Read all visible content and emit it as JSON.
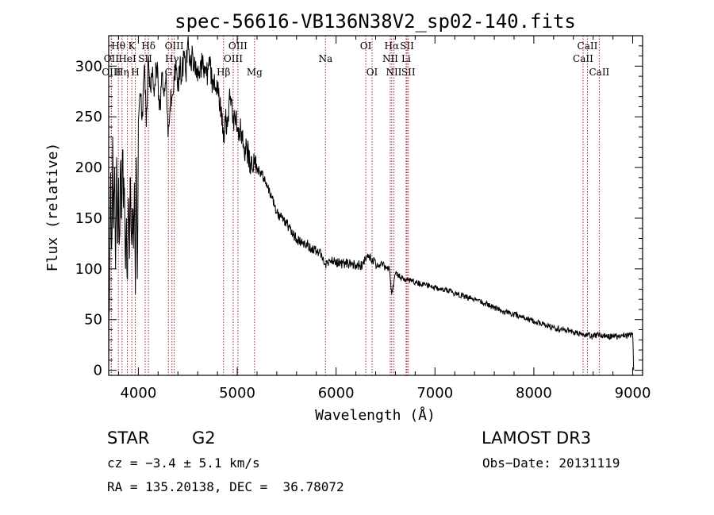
{
  "chart_data": {
    "type": "line",
    "title": "spec-56616-VB136N38V2_sp02-140.fits",
    "xlabel": "Wavelength (Å)",
    "ylabel": "Flux (relative)",
    "xlim": [
      3700,
      9100
    ],
    "ylim": [
      -5,
      330
    ],
    "xticks": [
      4000,
      5000,
      6000,
      7000,
      8000,
      9000
    ],
    "yticks": [
      0,
      50,
      100,
      150,
      200,
      250,
      300
    ],
    "xtick_labels": [
      "4000",
      "5000",
      "6000",
      "7000",
      "8000",
      "9000"
    ],
    "ytick_labels": [
      "0",
      "50",
      "100",
      "150",
      "200",
      "250",
      "300"
    ],
    "grid": false,
    "series": [
      {
        "name": "flux",
        "color": "#000000",
        "x": [
          3700,
          3710,
          3720,
          3730,
          3740,
          3750,
          3760,
          3770,
          3780,
          3790,
          3800,
          3810,
          3820,
          3830,
          3840,
          3850,
          3860,
          3870,
          3880,
          3890,
          3900,
          3910,
          3920,
          3930,
          3940,
          3950,
          3960,
          3970,
          3980,
          3990,
          4000,
          4020,
          4040,
          4060,
          4080,
          4101,
          4120,
          4140,
          4160,
          4180,
          4200,
          4220,
          4240,
          4260,
          4280,
          4300,
          4320,
          4340,
          4360,
          4380,
          4400,
          4420,
          4440,
          4460,
          4480,
          4500,
          4520,
          4540,
          4560,
          4580,
          4600,
          4630,
          4660,
          4690,
          4720,
          4750,
          4780,
          4810,
          4840,
          4861,
          4880,
          4900,
          4920,
          4950,
          4980,
          5010,
          5040,
          5070,
          5100,
          5130,
          5160,
          5180,
          5200,
          5230,
          5270,
          5310,
          5350,
          5400,
          5450,
          5500,
          5550,
          5600,
          5650,
          5700,
          5750,
          5800,
          5850,
          5893,
          5950,
          6000,
          6050,
          6100,
          6150,
          6200,
          6250,
          6300,
          6320,
          6350,
          6400,
          6450,
          6500,
          6540,
          6563,
          6600,
          6650,
          6700,
          6750,
          6800,
          6850,
          6900,
          6950,
          7000,
          7100,
          7200,
          7300,
          7400,
          7500,
          7600,
          7700,
          7800,
          7900,
          8000,
          8100,
          8200,
          8300,
          8400,
          8450,
          8498,
          8542,
          8580,
          8662,
          8700,
          8750,
          8800,
          8850,
          8900,
          8950,
          8990,
          9000,
          9010
        ],
        "y": [
          0,
          95,
          195,
          120,
          230,
          140,
          200,
          100,
          210,
          125,
          190,
          130,
          205,
          150,
          215,
          160,
          180,
          100,
          150,
          90,
          170,
          110,
          190,
          130,
          160,
          120,
          185,
          75,
          210,
          90,
          245,
          270,
          255,
          300,
          240,
          310,
          280,
          290,
          270,
          300,
          285,
          260,
          290,
          270,
          295,
          230,
          260,
          270,
          290,
          305,
          275,
          300,
          285,
          310,
          290,
          325,
          300,
          310,
          295,
          305,
          285,
          305,
          295,
          290,
          300,
          285,
          275,
          270,
          260,
          225,
          245,
          240,
          270,
          255,
          245,
          240,
          235,
          220,
          215,
          205,
          195,
          210,
          200,
          195,
          190,
          180,
          170,
          155,
          150,
          145,
          135,
          130,
          125,
          125,
          120,
          118,
          115,
          105,
          108,
          107,
          105,
          106,
          105,
          104,
          103,
          108,
          115,
          110,
          105,
          104,
          103,
          100,
          75,
          95,
          92,
          90,
          88,
          87,
          85,
          84,
          83,
          82,
          80,
          76,
          73,
          70,
          66,
          62,
          58,
          55,
          52,
          48,
          45,
          42,
          40,
          38,
          36,
          35,
          36,
          33,
          35,
          34,
          33,
          34,
          33,
          35,
          34,
          35,
          36,
          0
        ]
      }
    ],
    "line_ids": [
      {
        "label": "Hθ",
        "wave": 3798,
        "row": 1
      },
      {
        "label": "OII",
        "wave": 3727,
        "row": 2
      },
      {
        "label": "OIII",
        "wave": 3727,
        "row": 3
      },
      {
        "label": "Hη",
        "wave": 3835,
        "row": 3
      },
      {
        "label": "K",
        "wave": 3934,
        "row": 1
      },
      {
        "label": "HeI",
        "wave": 3889,
        "row": 2
      },
      {
        "label": "H",
        "wave": 3969,
        "row": 3
      },
      {
        "label": "Hδ",
        "wave": 4102,
        "row": 1
      },
      {
        "label": "SII",
        "wave": 4069,
        "row": 2
      },
      {
        "label": "OIII",
        "wave": 4363,
        "row": 1
      },
      {
        "label": "Hγ",
        "wave": 4340,
        "row": 2
      },
      {
        "label": "G",
        "wave": 4304,
        "row": 3
      },
      {
        "label": "Hβ",
        "wave": 4861,
        "row": 3
      },
      {
        "label": "OIII",
        "wave": 5007,
        "row": 1
      },
      {
        "label": "OIII",
        "wave": 4959,
        "row": 2
      },
      {
        "label": "Mg",
        "wave": 5175,
        "row": 3
      },
      {
        "label": "Na",
        "wave": 5893,
        "row": 2
      },
      {
        "label": "OI",
        "wave": 6300,
        "row": 1
      },
      {
        "label": "OI",
        "wave": 6364,
        "row": 3
      },
      {
        "label": "Hα",
        "wave": 6563,
        "row": 1
      },
      {
        "label": "NII",
        "wave": 6548,
        "row": 2
      },
      {
        "label": "NII",
        "wave": 6584,
        "row": 3
      },
      {
        "label": "SII",
        "wave": 6717,
        "row": 1
      },
      {
        "label": "Li",
        "wave": 6708,
        "row": 2
      },
      {
        "label": "SII",
        "wave": 6731,
        "row": 3
      },
      {
        "label": "CaII",
        "wave": 8542,
        "row": 1
      },
      {
        "label": "CaII",
        "wave": 8498,
        "row": 2
      },
      {
        "label": "CaII",
        "wave": 8662,
        "row": 3
      }
    ],
    "line_id_color": "#a0202a"
  },
  "info": {
    "object_class": "STAR",
    "subclass": "G2",
    "survey": "LAMOST DR3",
    "cz": "cz = −3.4 ± 5.1 km/s",
    "obs_date": "Obs−Date: 20131119",
    "coords": "RA = 135.20138, DEC =  36.78072"
  }
}
